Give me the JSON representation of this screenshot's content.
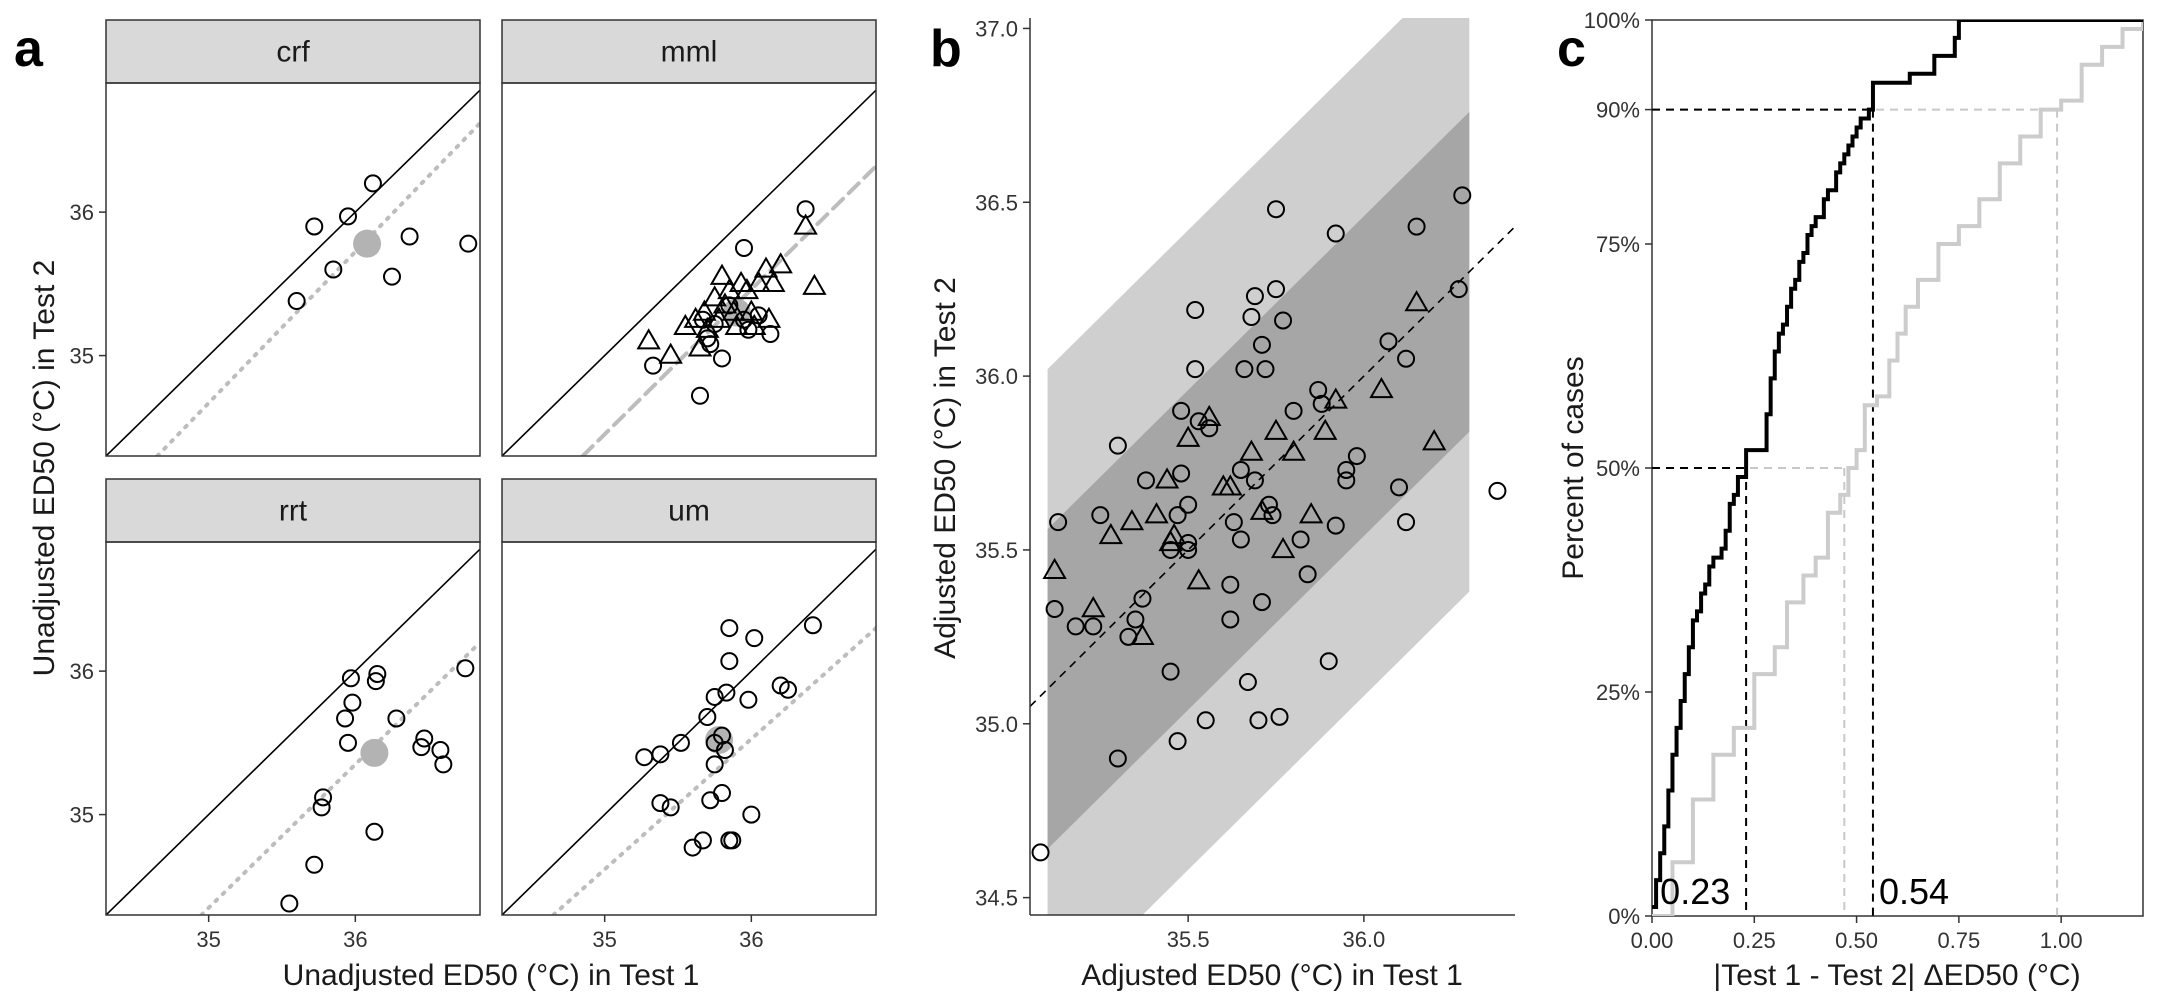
{
  "chart_data": [
    {
      "panel": "a",
      "type": "scatter",
      "xlabel": "Unadjusted ED50 (°C) in Test 1",
      "ylabel": "Unadjusted ED50 (°C) in Test 2",
      "xlim": [
        34.3,
        36.85
      ],
      "ylim": [
        34.3,
        36.9
      ],
      "xticks": [
        35,
        36
      ],
      "yticks": [
        35,
        36
      ],
      "facets": [
        {
          "name": "crf",
          "circles": [
            [
              35.6,
              35.38
            ],
            [
              35.72,
              35.9
            ],
            [
              35.85,
              35.6
            ],
            [
              35.95,
              35.97
            ],
            [
              36.12,
              36.2
            ],
            [
              36.25,
              35.55
            ],
            [
              36.37,
              35.83
            ],
            [
              36.77,
              35.78
            ]
          ],
          "triangles": [],
          "mean": [
            36.08,
            35.78
          ],
          "fit_line": [
            [
              34.65,
              34.3
            ],
            [
              36.85,
              36.62
            ]
          ],
          "fit_style": "dotted"
        },
        {
          "name": "mml",
          "circles": [
            [
              35.33,
              34.93
            ],
            [
              35.65,
              34.72
            ],
            [
              35.67,
              35.25
            ],
            [
              35.7,
              35.12
            ],
            [
              35.72,
              35.08
            ],
            [
              35.75,
              35.22
            ],
            [
              35.8,
              34.98
            ],
            [
              35.85,
              35.35
            ],
            [
              35.95,
              35.75
            ],
            [
              35.95,
              35.25
            ],
            [
              35.98,
              35.18
            ],
            [
              36.05,
              35.28
            ],
            [
              36.13,
              35.15
            ],
            [
              36.37,
              36.02
            ]
          ],
          "triangles": [
            [
              35.3,
              35.1
            ],
            [
              35.45,
              35.0
            ],
            [
              35.55,
              35.2
            ],
            [
              35.62,
              35.25
            ],
            [
              35.65,
              35.05
            ],
            [
              35.68,
              35.3
            ],
            [
              35.7,
              35.18
            ],
            [
              35.75,
              35.4
            ],
            [
              35.78,
              35.25
            ],
            [
              35.8,
              35.55
            ],
            [
              35.82,
              35.35
            ],
            [
              35.85,
              35.45
            ],
            [
              35.88,
              35.3
            ],
            [
              35.9,
              35.2
            ],
            [
              35.93,
              35.5
            ],
            [
              35.97,
              35.45
            ],
            [
              36.0,
              35.3
            ],
            [
              36.02,
              35.2
            ],
            [
              36.05,
              35.5
            ],
            [
              36.1,
              35.6
            ],
            [
              36.12,
              35.25
            ],
            [
              36.15,
              35.5
            ],
            [
              36.2,
              35.63
            ],
            [
              36.37,
              35.9
            ],
            [
              36.43,
              35.48
            ]
          ],
          "mean": [
            35.9,
            35.3
          ],
          "fit_line": [
            [
              34.85,
              34.3
            ],
            [
              36.85,
              36.32
            ]
          ],
          "fit_style": "dashed"
        },
        {
          "name": "rrt",
          "circles": [
            [
              35.55,
              34.38
            ],
            [
              35.72,
              34.65
            ],
            [
              35.77,
              35.05
            ],
            [
              35.78,
              35.12
            ],
            [
              35.93,
              35.67
            ],
            [
              35.95,
              35.5
            ],
            [
              35.97,
              35.95
            ],
            [
              35.98,
              35.78
            ],
            [
              36.13,
              34.88
            ],
            [
              36.14,
              35.93
            ],
            [
              36.15,
              35.98
            ],
            [
              36.28,
              35.67
            ],
            [
              36.45,
              35.47
            ],
            [
              36.47,
              35.53
            ],
            [
              36.58,
              35.45
            ],
            [
              36.6,
              35.35
            ],
            [
              36.75,
              36.02
            ]
          ],
          "triangles": [],
          "mean": [
            36.13,
            35.43
          ],
          "fit_line": [
            [
              34.95,
              34.3
            ],
            [
              36.85,
              36.2
            ]
          ],
          "fit_style": "dotted"
        },
        {
          "name": "um",
          "circles": [
            [
              35.27,
              35.4
            ],
            [
              35.38,
              35.42
            ],
            [
              35.38,
              35.08
            ],
            [
              35.45,
              35.05
            ],
            [
              35.52,
              35.5
            ],
            [
              35.6,
              34.77
            ],
            [
              35.67,
              34.82
            ],
            [
              35.7,
              35.68
            ],
            [
              35.72,
              35.1
            ],
            [
              35.75,
              35.5
            ],
            [
              35.75,
              35.35
            ],
            [
              35.75,
              35.82
            ],
            [
              35.8,
              35.15
            ],
            [
              35.8,
              35.55
            ],
            [
              35.82,
              35.45
            ],
            [
              35.83,
              35.85
            ],
            [
              35.85,
              34.82
            ],
            [
              35.85,
              36.07
            ],
            [
              35.85,
              36.3
            ],
            [
              35.87,
              34.82
            ],
            [
              35.98,
              35.8
            ],
            [
              36.0,
              35.0
            ],
            [
              36.02,
              36.23
            ],
            [
              36.2,
              35.9
            ],
            [
              36.25,
              35.87
            ],
            [
              36.42,
              36.32
            ]
          ],
          "triangles": [],
          "mean": [
            35.78,
            35.52
          ],
          "fit_line": [
            [
              34.65,
              34.3
            ],
            [
              36.85,
              36.3
            ]
          ],
          "fit_style": "dotted"
        }
      ]
    },
    {
      "panel": "b",
      "type": "scatter",
      "xlabel": "Adjusted ED50 (°C) in Test 1",
      "ylabel": "Adjusted ED50 (°C) in Test 2",
      "xlim": [
        35.05,
        36.43
      ],
      "ylim": [
        34.45,
        37.03
      ],
      "xticks": [
        35.5,
        36.0
      ],
      "yticks": [
        34.5,
        35.0,
        35.5,
        36.0,
        36.5,
        37.0
      ],
      "tick_labels_x": [
        "35.5",
        "36.0"
      ],
      "tick_labels_y": [
        "34.5",
        "35.0",
        "35.5",
        "36.0",
        "36.5",
        "37.0"
      ],
      "regression": {
        "slope": 1.0,
        "intercept": 0.0,
        "x_range": [
          35.05,
          36.43
        ]
      },
      "band_inner_halfwidth": 0.46,
      "band_outer_halfwidth": 0.92,
      "band_x_range": [
        35.1,
        36.3
      ],
      "circles": [
        [
          35.08,
          34.63
        ],
        [
          35.12,
          35.33
        ],
        [
          35.13,
          35.58
        ],
        [
          35.18,
          35.28
        ],
        [
          35.23,
          35.28
        ],
        [
          35.25,
          35.6
        ],
        [
          35.3,
          34.9
        ],
        [
          35.3,
          35.8
        ],
        [
          35.33,
          35.25
        ],
        [
          35.35,
          35.3
        ],
        [
          35.37,
          35.36
        ],
        [
          35.38,
          35.7
        ],
        [
          35.45,
          35.15
        ],
        [
          35.45,
          35.5
        ],
        [
          35.47,
          34.95
        ],
        [
          35.47,
          35.6
        ],
        [
          35.48,
          35.9
        ],
        [
          35.48,
          35.72
        ],
        [
          35.5,
          35.52
        ],
        [
          35.5,
          35.63
        ],
        [
          35.5,
          35.5
        ],
        [
          35.52,
          36.02
        ],
        [
          35.52,
          36.19
        ],
        [
          35.53,
          35.87
        ],
        [
          35.55,
          35.01
        ],
        [
          35.56,
          35.85
        ],
        [
          35.62,
          35.4
        ],
        [
          35.62,
          35.3
        ],
        [
          35.63,
          35.58
        ],
        [
          35.65,
          35.73
        ],
        [
          35.65,
          35.53
        ],
        [
          35.66,
          36.02
        ],
        [
          35.67,
          35.12
        ],
        [
          35.68,
          36.17
        ],
        [
          35.69,
          35.7
        ],
        [
          35.69,
          36.23
        ],
        [
          35.7,
          35.01
        ],
        [
          35.71,
          35.35
        ],
        [
          35.71,
          36.09
        ],
        [
          35.72,
          36.02
        ],
        [
          35.73,
          35.63
        ],
        [
          35.74,
          35.6
        ],
        [
          35.75,
          36.25
        ],
        [
          35.75,
          36.48
        ],
        [
          35.76,
          35.02
        ],
        [
          35.77,
          36.16
        ],
        [
          35.8,
          35.9
        ],
        [
          35.82,
          35.53
        ],
        [
          35.84,
          35.43
        ],
        [
          35.87,
          35.96
        ],
        [
          35.88,
          35.92
        ],
        [
          35.9,
          35.18
        ],
        [
          35.92,
          35.57
        ],
        [
          35.92,
          36.41
        ],
        [
          35.95,
          35.7
        ],
        [
          35.95,
          35.73
        ],
        [
          35.98,
          35.77
        ],
        [
          36.07,
          36.1
        ],
        [
          36.1,
          35.68
        ],
        [
          36.12,
          35.58
        ],
        [
          36.12,
          36.05
        ],
        [
          36.15,
          36.43
        ],
        [
          36.27,
          36.25
        ],
        [
          36.28,
          36.52
        ],
        [
          36.38,
          35.67
        ]
      ],
      "triangles": [
        [
          35.12,
          35.44
        ],
        [
          35.23,
          35.33
        ],
        [
          35.28,
          35.54
        ],
        [
          35.34,
          35.58
        ],
        [
          35.37,
          35.25
        ],
        [
          35.41,
          35.6
        ],
        [
          35.44,
          35.7
        ],
        [
          35.45,
          35.52
        ],
        [
          35.46,
          35.54
        ],
        [
          35.5,
          35.82
        ],
        [
          35.53,
          35.41
        ],
        [
          35.56,
          35.88
        ],
        [
          35.6,
          35.68
        ],
        [
          35.62,
          35.68
        ],
        [
          35.68,
          35.78
        ],
        [
          35.71,
          35.61
        ],
        [
          35.75,
          35.84
        ],
        [
          35.77,
          35.5
        ],
        [
          35.8,
          35.78
        ],
        [
          35.85,
          35.6
        ],
        [
          35.89,
          35.84
        ],
        [
          35.92,
          35.93
        ],
        [
          36.05,
          35.96
        ],
        [
          36.15,
          36.21
        ],
        [
          36.2,
          35.81
        ]
      ]
    },
    {
      "panel": "c",
      "type": "line",
      "xlabel": "|Test 1 - Test 2| ΔED50 (°C)",
      "ylabel": "Percent of cases",
      "xlim": [
        0,
        1.2
      ],
      "ylim": [
        0,
        1
      ],
      "xticks": [
        0,
        0.25,
        0.5,
        0.75,
        1.0
      ],
      "tick_labels_x": [
        "0.00",
        "0.25",
        "0.50",
        "0.75",
        "1.00"
      ],
      "yticks": [
        0,
        0.25,
        0.5,
        0.75,
        0.9,
        1.0
      ],
      "tick_labels_y": [
        "0%",
        "25%",
        "50%",
        "75%",
        "90%",
        "100%"
      ],
      "series": [
        {
          "color": "#000000",
          "x": [
            0.0,
            0.01,
            0.02,
            0.03,
            0.04,
            0.05,
            0.06,
            0.07,
            0.08,
            0.09,
            0.1,
            0.11,
            0.12,
            0.13,
            0.14,
            0.15,
            0.16,
            0.17,
            0.18,
            0.19,
            0.2,
            0.21,
            0.22,
            0.23,
            0.24,
            0.26,
            0.28,
            0.29,
            0.3,
            0.31,
            0.32,
            0.33,
            0.34,
            0.35,
            0.36,
            0.37,
            0.38,
            0.39,
            0.4,
            0.41,
            0.42,
            0.43,
            0.44,
            0.45,
            0.46,
            0.47,
            0.48,
            0.49,
            0.5,
            0.51,
            0.52,
            0.53,
            0.54,
            0.55,
            0.6,
            0.63,
            0.66,
            0.69,
            0.72,
            0.74,
            0.75
          ],
          "y": [
            0.01,
            0.04,
            0.07,
            0.1,
            0.14,
            0.18,
            0.21,
            0.24,
            0.27,
            0.3,
            0.33,
            0.34,
            0.36,
            0.37,
            0.39,
            0.4,
            0.4,
            0.41,
            0.43,
            0.46,
            0.47,
            0.49,
            0.49,
            0.52,
            0.52,
            0.52,
            0.56,
            0.6,
            0.63,
            0.65,
            0.66,
            0.68,
            0.7,
            0.71,
            0.73,
            0.74,
            0.76,
            0.77,
            0.78,
            0.78,
            0.8,
            0.81,
            0.81,
            0.83,
            0.84,
            0.85,
            0.86,
            0.87,
            0.88,
            0.89,
            0.89,
            0.9,
            0.93,
            0.93,
            0.93,
            0.94,
            0.94,
            0.96,
            0.96,
            0.98,
            1.0
          ],
          "marker_x": 0.54,
          "marker_q": 0.9
        },
        {
          "color": "#cccccc",
          "x": [
            0.0,
            0.05,
            0.1,
            0.15,
            0.2,
            0.25,
            0.3,
            0.33,
            0.37,
            0.4,
            0.43,
            0.46,
            0.48,
            0.5,
            0.52,
            0.55,
            0.58,
            0.6,
            0.62,
            0.65,
            0.7,
            0.75,
            0.8,
            0.85,
            0.9,
            0.95,
            1.0,
            1.05,
            1.1,
            1.15,
            1.2
          ],
          "y": [
            0.0,
            0.06,
            0.13,
            0.18,
            0.21,
            0.27,
            0.3,
            0.35,
            0.38,
            0.4,
            0.45,
            0.47,
            0.5,
            0.52,
            0.57,
            0.58,
            0.62,
            0.65,
            0.68,
            0.71,
            0.75,
            0.77,
            0.8,
            0.84,
            0.87,
            0.9,
            0.91,
            0.95,
            0.97,
            0.99,
            1.0
          ],
          "marker_x": 0.99,
          "marker_q": 0.9
        }
      ],
      "median_markers": [
        0.23,
        0.47
      ],
      "annotations": [
        "0.23",
        "0.54"
      ]
    }
  ],
  "panel_labels": [
    "a",
    "b",
    "c"
  ]
}
